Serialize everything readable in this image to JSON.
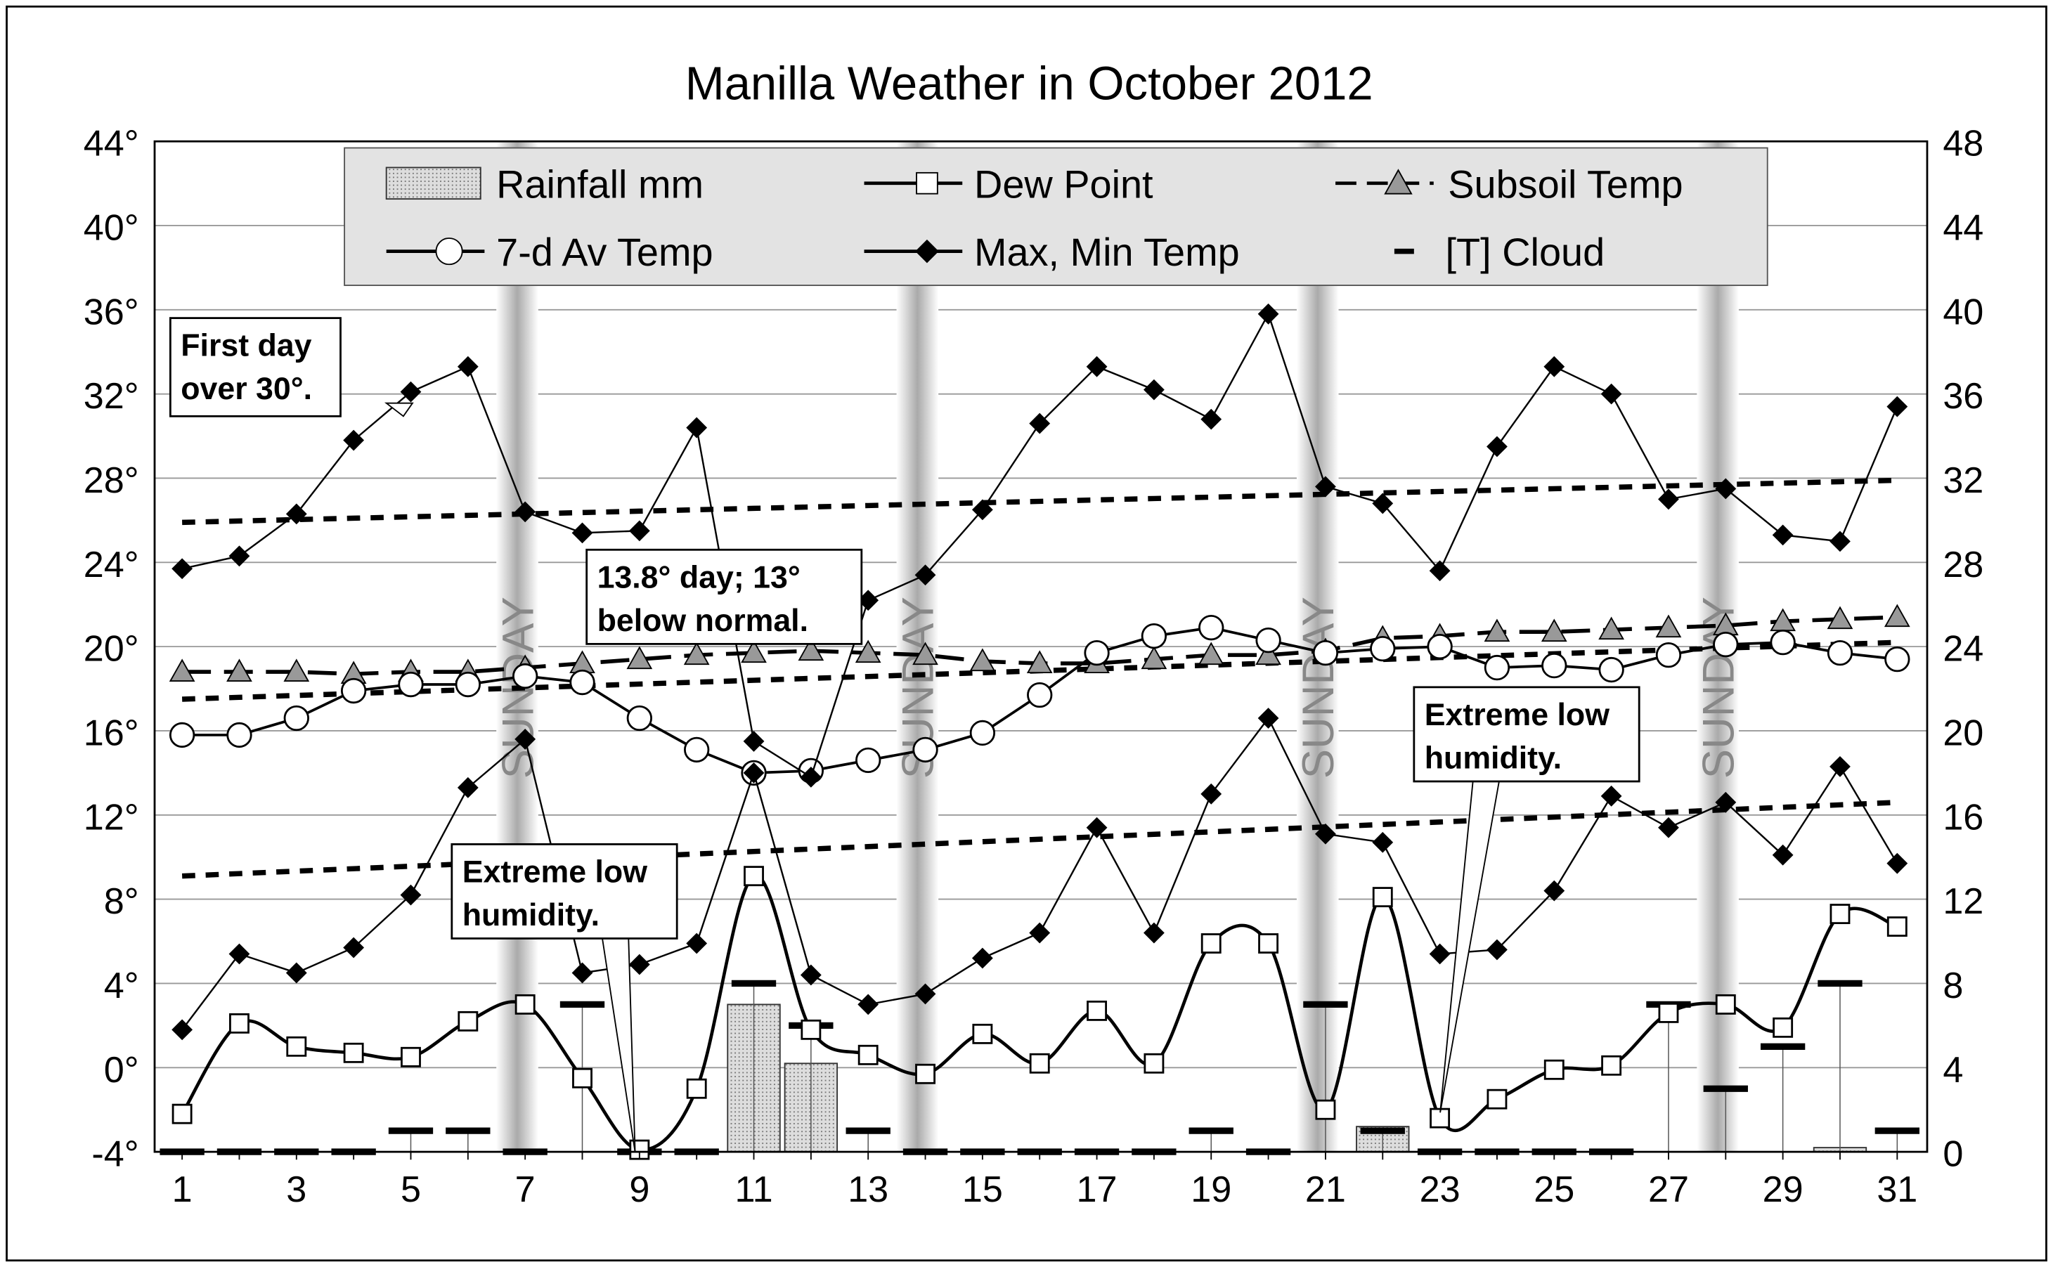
{
  "chart_data": {
    "type": "line",
    "title": "Manilla Weather in October 2012",
    "x": [
      1,
      2,
      3,
      4,
      5,
      6,
      7,
      8,
      9,
      10,
      11,
      12,
      13,
      14,
      15,
      16,
      17,
      18,
      19,
      20,
      21,
      22,
      23,
      24,
      25,
      26,
      27,
      28,
      29,
      30,
      31
    ],
    "x_tick_labels": [
      "1",
      "3",
      "5",
      "7",
      "9",
      "11",
      "13",
      "15",
      "17",
      "19",
      "21",
      "23",
      "25",
      "27",
      "29",
      "31"
    ],
    "y_left": {
      "range": [
        -4,
        44
      ],
      "tick_labels": [
        "-4°",
        "0°",
        "4°",
        "8°",
        "12°",
        "16°",
        "20°",
        "24°",
        "28°",
        "32°",
        "36°",
        "40°",
        "44°"
      ]
    },
    "y_right": {
      "range": [
        0,
        48
      ],
      "tick_labels": [
        "0",
        "4",
        "8",
        "12",
        "16",
        "20",
        "24",
        "28",
        "32",
        "36",
        "40",
        "44",
        "48"
      ]
    },
    "grid": true,
    "legend_placement": "top",
    "legend": [
      "Rainfall mm",
      "Dew Point",
      "Subsoil Temp",
      "7-d Av Temp",
      "Max, Min Temp",
      "[T] Cloud"
    ],
    "series": [
      {
        "name": "Max, Min Temp",
        "axis": "left",
        "part": "max",
        "values": [
          23.7,
          24.3,
          26.3,
          29.8,
          32.1,
          33.3,
          26.4,
          25.4,
          25.5,
          30.4,
          15.5,
          13.8,
          22.2,
          23.4,
          26.5,
          30.6,
          33.3,
          32.2,
          30.8,
          35.8,
          27.6,
          26.8,
          23.6,
          29.5,
          33.3,
          32.0,
          27.0,
          27.5,
          25.3,
          25.0,
          31.4
        ]
      },
      {
        "name": "Max, Min Temp",
        "axis": "left",
        "part": "min",
        "values": [
          1.8,
          5.4,
          4.5,
          5.7,
          8.2,
          13.3,
          15.6,
          4.5,
          4.9,
          5.9,
          14.0,
          4.4,
          3.0,
          3.5,
          5.2,
          6.4,
          11.4,
          6.4,
          13.0,
          16.6,
          11.1,
          10.7,
          5.4,
          5.6,
          8.4,
          12.9,
          11.4,
          12.6,
          10.1,
          14.3,
          9.7
        ]
      },
      {
        "name": "Dew Point",
        "axis": "left",
        "values": [
          -2.2,
          2.1,
          1.0,
          0.7,
          0.5,
          2.2,
          3.0,
          -0.5,
          -3.9,
          -1.0,
          9.1,
          1.8,
          0.6,
          -0.3,
          1.6,
          0.2,
          2.7,
          0.2,
          5.9,
          5.9,
          -2.0,
          8.1,
          -2.4,
          -1.5,
          -0.1,
          0.1,
          2.6,
          3.0,
          1.9,
          7.3,
          6.7
        ]
      },
      {
        "name": "7-d Av Temp",
        "axis": "left",
        "values": [
          15.8,
          15.8,
          16.6,
          17.9,
          18.2,
          18.2,
          18.6,
          18.3,
          16.6,
          15.1,
          14.0,
          14.1,
          14.6,
          15.1,
          15.9,
          17.7,
          19.7,
          20.5,
          20.9,
          20.3,
          19.7,
          19.9,
          20.0,
          19.0,
          19.1,
          18.9,
          19.6,
          20.1,
          20.2,
          19.7,
          19.4
        ]
      },
      {
        "name": "Subsoil Temp",
        "axis": "left",
        "values": [
          18.8,
          18.8,
          18.8,
          18.7,
          18.8,
          18.8,
          19.0,
          19.2,
          19.4,
          19.6,
          19.7,
          19.8,
          19.7,
          19.6,
          19.3,
          19.2,
          19.2,
          19.4,
          19.6,
          19.6,
          19.8,
          20.4,
          20.5,
          20.7,
          20.7,
          20.8,
          20.9,
          21.0,
          21.2,
          21.3,
          21.4
        ]
      },
      {
        "name": "Rainfall mm",
        "axis": "right",
        "type": "bar",
        "values": [
          0,
          0,
          0,
          0,
          0,
          0,
          0,
          0,
          0,
          0,
          7.0,
          4.2,
          0,
          0,
          0,
          0,
          0,
          0,
          0,
          0,
          0,
          1.2,
          0,
          0,
          0,
          0,
          0,
          0,
          0,
          0.2,
          0
        ]
      },
      {
        "name": "[T] Cloud",
        "axis": "right",
        "type": "dash",
        "values": [
          0,
          0,
          0,
          0,
          1,
          1,
          0,
          7,
          0,
          0,
          8,
          6,
          1,
          0,
          0,
          0,
          0,
          0,
          1,
          0,
          7,
          1,
          0,
          0,
          0,
          0,
          7,
          3,
          5,
          8,
          1
        ]
      },
      {
        "axis": "left",
        "type": "dotted",
        "values_start_end": [
          25.9,
          27.9
        ]
      },
      {
        "axis": "left",
        "type": "dotted",
        "values_start_end": [
          17.5,
          20.2
        ]
      },
      {
        "axis": "left",
        "type": "dotted",
        "values_start_end": [
          9.1,
          12.6
        ]
      }
    ],
    "sunday_days": [
      7,
      14,
      21,
      28
    ],
    "sunday_label": "SUNDAY",
    "annotations": [
      {
        "text": [
          "First day",
          "over 30°."
        ],
        "day": 5
      },
      {
        "text": [
          "13.8° day; 13°",
          "below normal."
        ],
        "day": 12
      },
      {
        "text": [
          "Extreme low",
          "humidity."
        ],
        "day": 9
      },
      {
        "text": [
          "Extreme low",
          "humidity."
        ],
        "day": 23
      }
    ]
  }
}
